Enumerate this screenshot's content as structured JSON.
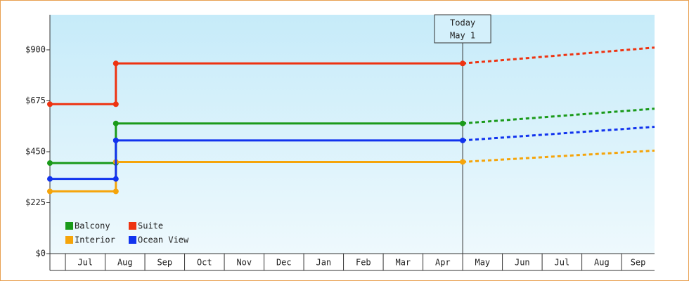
{
  "chart_data": {
    "type": "line",
    "categories": [
      "Jul",
      "Aug",
      "Sep",
      "Oct",
      "Nov",
      "Dec",
      "Jan",
      "Feb",
      "Mar",
      "Apr",
      "May",
      "Jun",
      "Jul",
      "Aug",
      "Sep"
    ],
    "xlim": [
      -0.39,
      14.83
    ],
    "xticks": [
      0,
      1,
      2,
      3,
      4,
      5,
      6,
      7,
      8,
      9,
      10,
      11,
      12,
      13,
      14
    ],
    "ylim": [
      0,
      1055
    ],
    "yticks": [
      {
        "value": 0,
        "label": "$0"
      },
      {
        "value": 225,
        "label": "$225"
      },
      {
        "value": 450,
        "label": "$450"
      },
      {
        "value": 675,
        "label": "$675"
      },
      {
        "value": 900,
        "label": "$900"
      }
    ],
    "annotation": {
      "x": 10,
      "lines": [
        "Today",
        "May 1"
      ]
    },
    "legend": "bottom-left",
    "series": [
      {
        "name": "Balcony",
        "color": "#1a9a1a",
        "x": [
          -0.39,
          1.27,
          1.27,
          10
        ],
        "values": [
          400,
          400,
          575,
          575
        ],
        "forecast": {
          "x": [
            10,
            14.83
          ],
          "values": [
            575,
            640
          ]
        }
      },
      {
        "name": "Suite",
        "color": "#ee3311",
        "x": [
          -0.39,
          1.27,
          1.27,
          10
        ],
        "values": [
          660,
          660,
          840,
          840
        ],
        "forecast": {
          "x": [
            10,
            14.83
          ],
          "values": [
            840,
            910
          ]
        }
      },
      {
        "name": "Interior",
        "color": "#f5a40a",
        "x": [
          -0.39,
          1.27,
          1.27,
          10
        ],
        "values": [
          275,
          275,
          405,
          405
        ],
        "forecast": {
          "x": [
            10,
            14.83
          ],
          "values": [
            405,
            455
          ]
        }
      },
      {
        "name": "Ocean View",
        "color": "#1133ee",
        "x": [
          -0.39,
          1.27,
          1.27,
          10
        ],
        "values": [
          330,
          330,
          500,
          500
        ],
        "forecast": {
          "x": [
            10,
            14.83
          ],
          "values": [
            500,
            560
          ]
        }
      }
    ]
  }
}
